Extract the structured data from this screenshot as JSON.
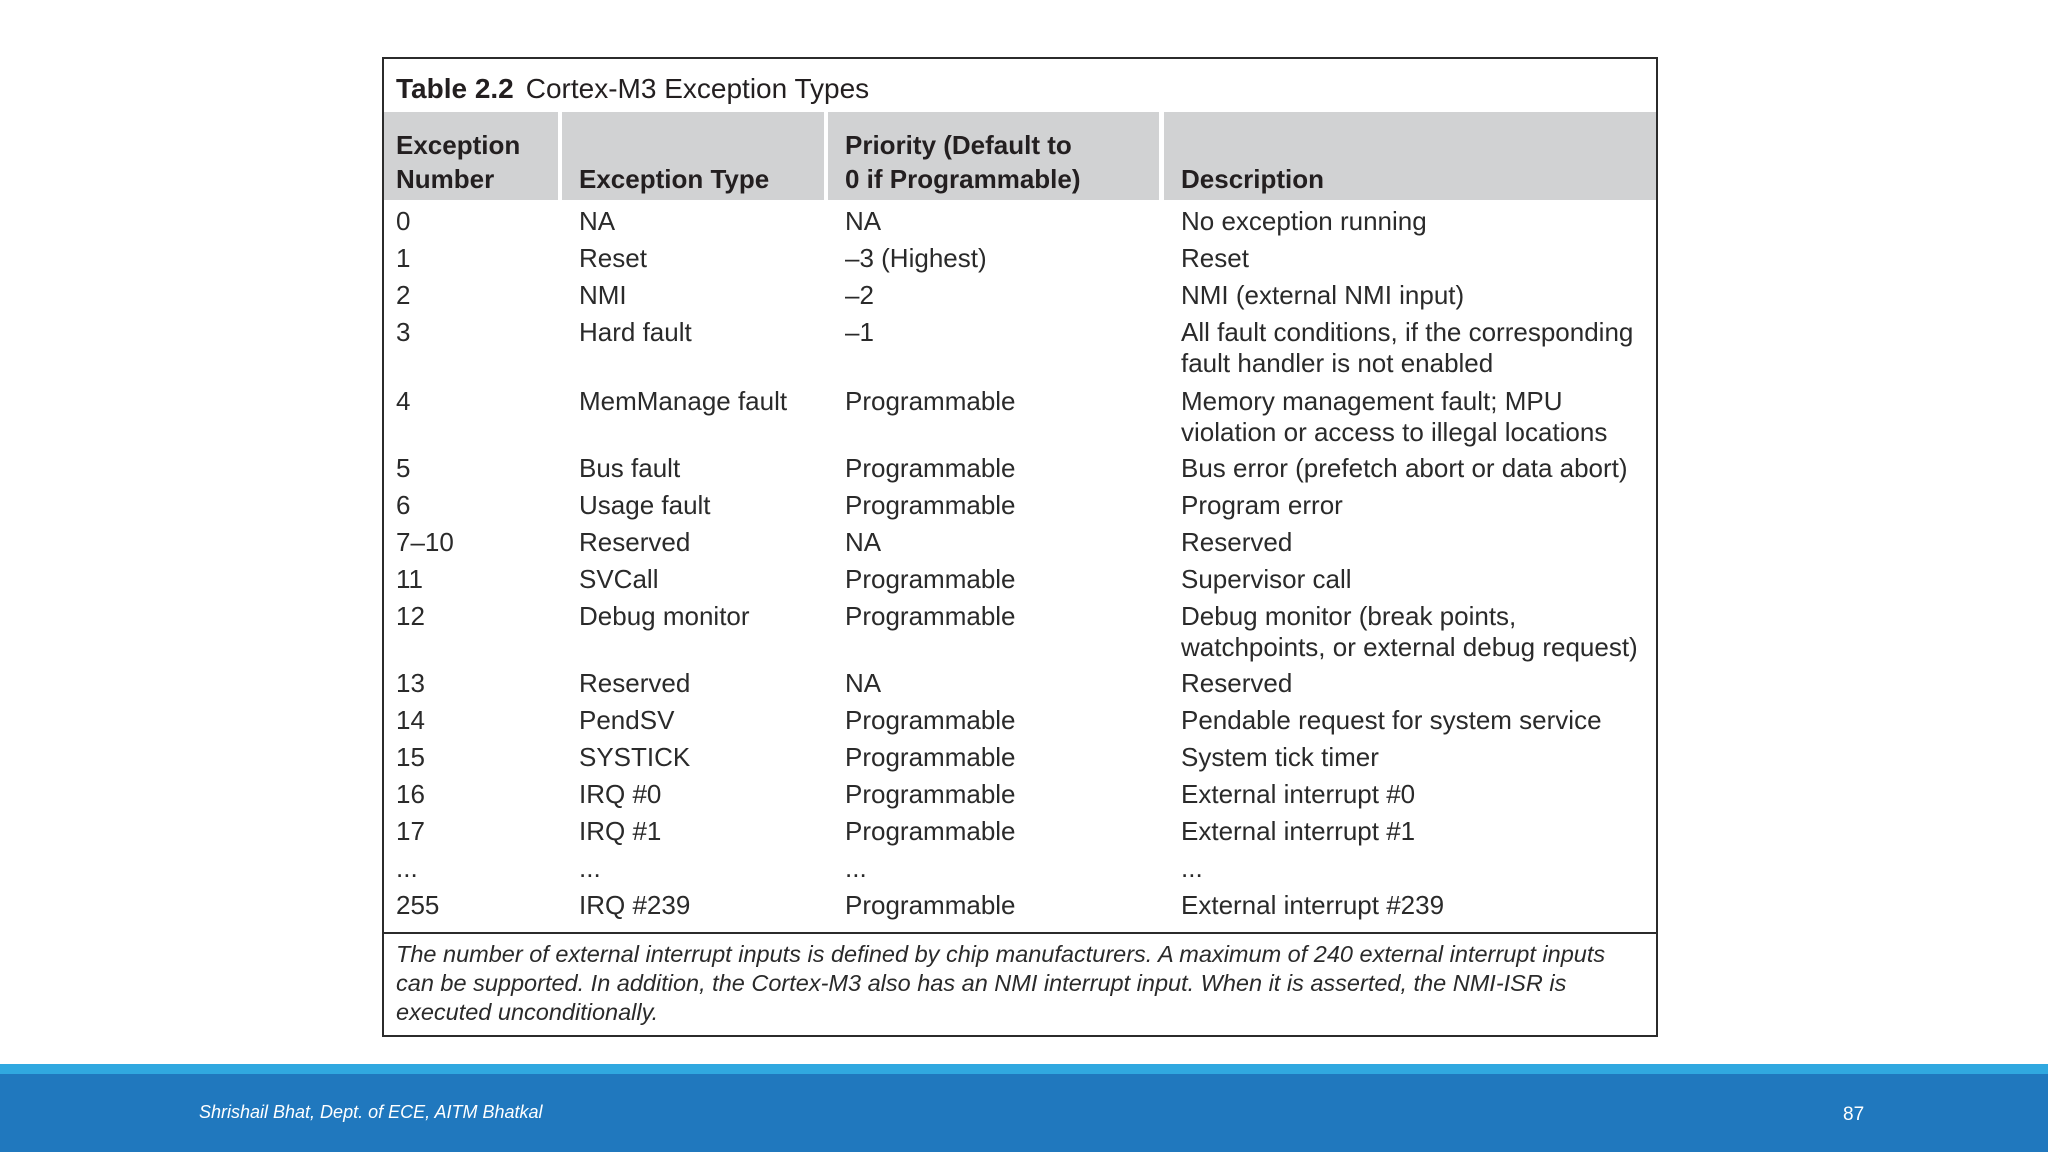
{
  "table": {
    "caption_number": "Table 2.2",
    "caption_title": "Cortex-M3 Exception Types",
    "headers": [
      [
        "Exception",
        "Number"
      ],
      [
        "Exception Type"
      ],
      [
        "Priority (Default to",
        "0 if Programmable)"
      ],
      [
        "Description"
      ]
    ],
    "rows": [
      {
        "number": "0",
        "type": "NA",
        "priority": "NA",
        "description": [
          "No exception running"
        ]
      },
      {
        "number": "1",
        "type": "Reset",
        "priority": "–3 (Highest)",
        "description": [
          "Reset"
        ]
      },
      {
        "number": "2",
        "type": "NMI",
        "priority": "–2",
        "description": [
          "NMI (external NMI input)"
        ]
      },
      {
        "number": "3",
        "type": "Hard fault",
        "priority": "–1",
        "description": [
          "All fault conditions, if the corresponding",
          "fault handler is not enabled"
        ]
      },
      {
        "number": "4",
        "type": "MemManage fault",
        "priority": "Programmable",
        "description": [
          "Memory management fault; MPU",
          "violation or access to illegal locations"
        ]
      },
      {
        "number": "5",
        "type": "Bus fault",
        "priority": "Programmable",
        "description": [
          "Bus error (prefetch abort or data abort)"
        ]
      },
      {
        "number": "6",
        "type": "Usage fault",
        "priority": "Programmable",
        "description": [
          "Program error"
        ]
      },
      {
        "number": "7–10",
        "type": "Reserved",
        "priority": "NA",
        "description": [
          "Reserved"
        ]
      },
      {
        "number": "11",
        "type": "SVCall",
        "priority": "Programmable",
        "description": [
          "Supervisor call"
        ]
      },
      {
        "number": "12",
        "type": "Debug monitor",
        "priority": "Programmable",
        "description": [
          "Debug monitor (break points,",
          "watchpoints, or external debug request)"
        ]
      },
      {
        "number": "13",
        "type": "Reserved",
        "priority": "NA",
        "description": [
          "Reserved"
        ]
      },
      {
        "number": "14",
        "type": "PendSV",
        "priority": "Programmable",
        "description": [
          "Pendable request for system service"
        ]
      },
      {
        "number": "15",
        "type": "SYSTICK",
        "priority": "Programmable",
        "description": [
          "System tick timer"
        ]
      },
      {
        "number": "16",
        "type": "IRQ #0",
        "priority": "Programmable",
        "description": [
          "External interrupt #0"
        ]
      },
      {
        "number": "17",
        "type": "IRQ #1",
        "priority": "Programmable",
        "description": [
          "External interrupt #1"
        ]
      },
      {
        "number": "...",
        "type": "...",
        "priority": "...",
        "description": [
          "..."
        ]
      },
      {
        "number": "255",
        "type": "IRQ #239",
        "priority": "Programmable",
        "description": [
          "External interrupt #239"
        ]
      }
    ],
    "footnote": "The number of external interrupt inputs is defined by chip manufacturers. A maximum of 240 external interrupt inputs can be supported. In addition, the Cortex-M3 also has an NMI interrupt input. When it is asserted, the NMI-ISR is executed unconditionally."
  },
  "footer": {
    "author": "Shrishail Bhat, Dept. of ECE, AITM Bhatkal",
    "page_number": "87"
  },
  "colors": {
    "header_fill": "#d1d2d3",
    "band_light": "#30a8e0",
    "band_dark": "#2078be"
  }
}
